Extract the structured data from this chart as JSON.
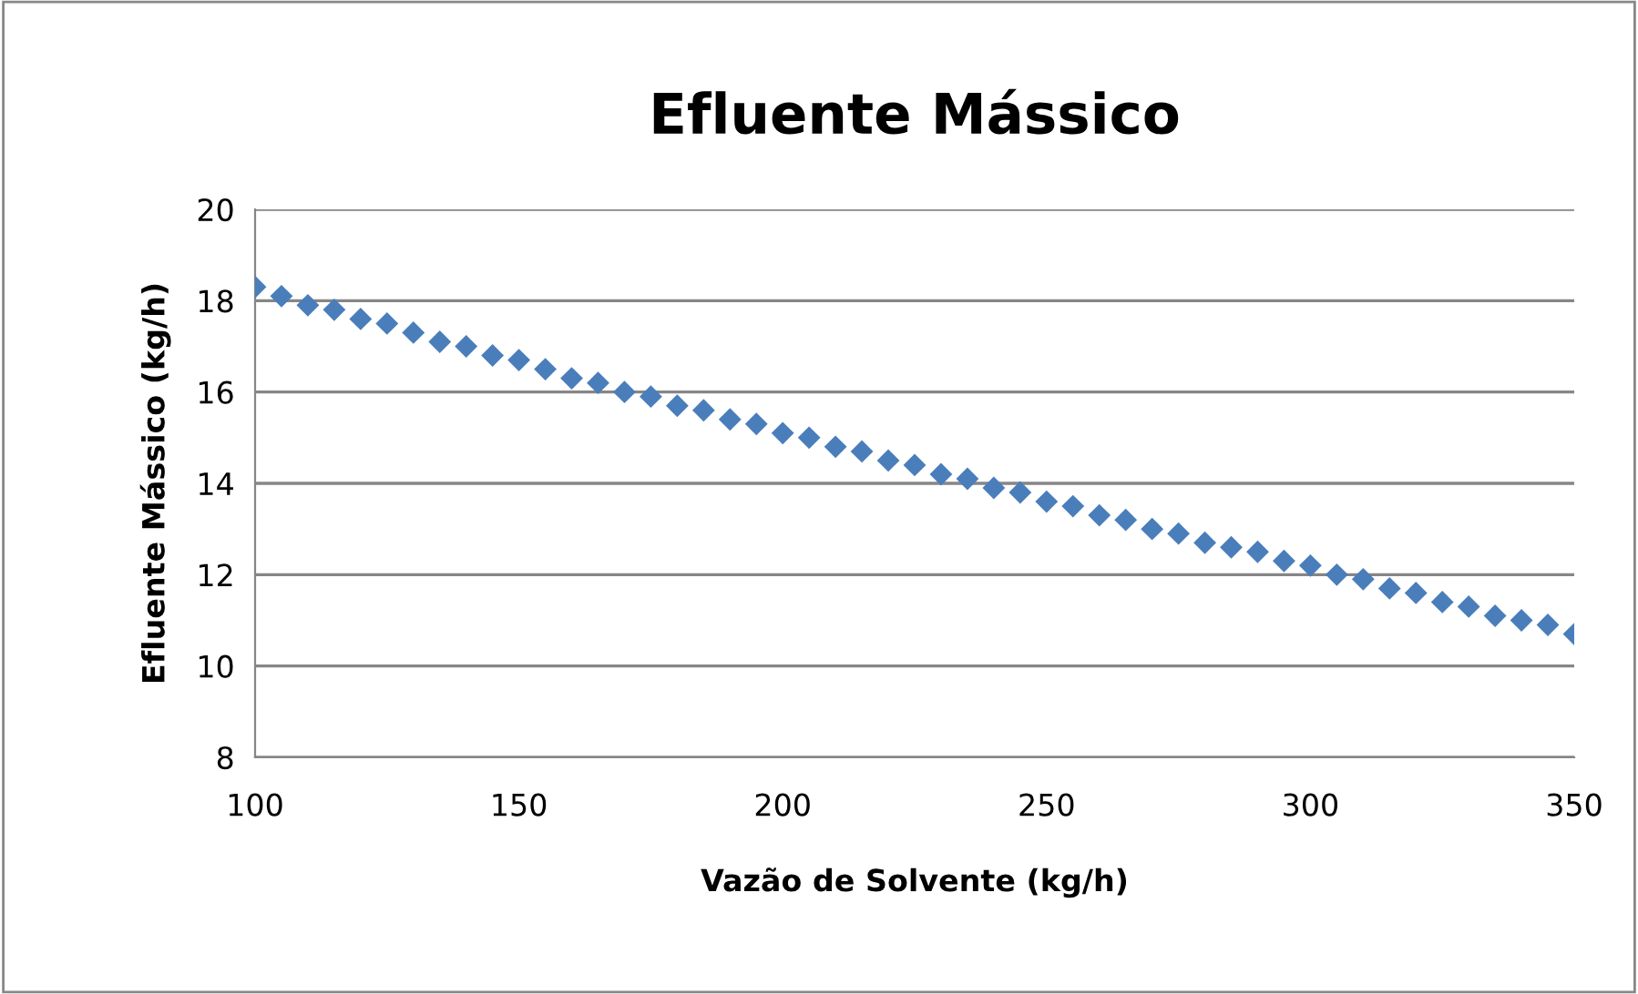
{
  "chart_data": {
    "type": "scatter",
    "title": "Efluente Mássico",
    "xlabel": "Vazão de Solvente (kg/h)",
    "ylabel": "Efluente Mássico (kg/h)",
    "x": [
      100,
      105,
      110,
      115,
      120,
      125,
      130,
      135,
      140,
      145,
      150,
      155,
      160,
      165,
      170,
      175,
      180,
      185,
      190,
      195,
      200,
      205,
      210,
      215,
      220,
      225,
      230,
      235,
      240,
      245,
      250,
      255,
      260,
      265,
      270,
      275,
      280,
      285,
      290,
      295,
      300,
      305,
      310,
      315,
      320,
      325,
      330,
      335,
      340,
      345,
      350
    ],
    "series": [
      {
        "color": "#4a7ebb",
        "values": [
          18.3,
          18.1,
          17.9,
          17.8,
          17.6,
          17.5,
          17.3,
          17.1,
          17.0,
          16.8,
          16.7,
          16.5,
          16.3,
          16.2,
          16.0,
          15.9,
          15.7,
          15.6,
          15.4,
          15.3,
          15.1,
          15.0,
          14.8,
          14.7,
          14.5,
          14.4,
          14.2,
          14.1,
          13.9,
          13.8,
          13.6,
          13.5,
          13.3,
          13.2,
          13.0,
          12.9,
          12.7,
          12.6,
          12.5,
          12.3,
          12.2,
          12.0,
          11.9,
          11.7,
          11.6,
          11.4,
          11.3,
          11.1,
          11.0,
          10.9,
          10.7
        ]
      }
    ],
    "xlim": [
      100,
      350
    ],
    "xticks": [
      100,
      150,
      200,
      250,
      300,
      350
    ],
    "ylim": [
      8,
      20
    ],
    "yticks": [
      8,
      10,
      12,
      14,
      16,
      18,
      20
    ],
    "grid": "y",
    "legend": false,
    "marker": "diamond"
  }
}
